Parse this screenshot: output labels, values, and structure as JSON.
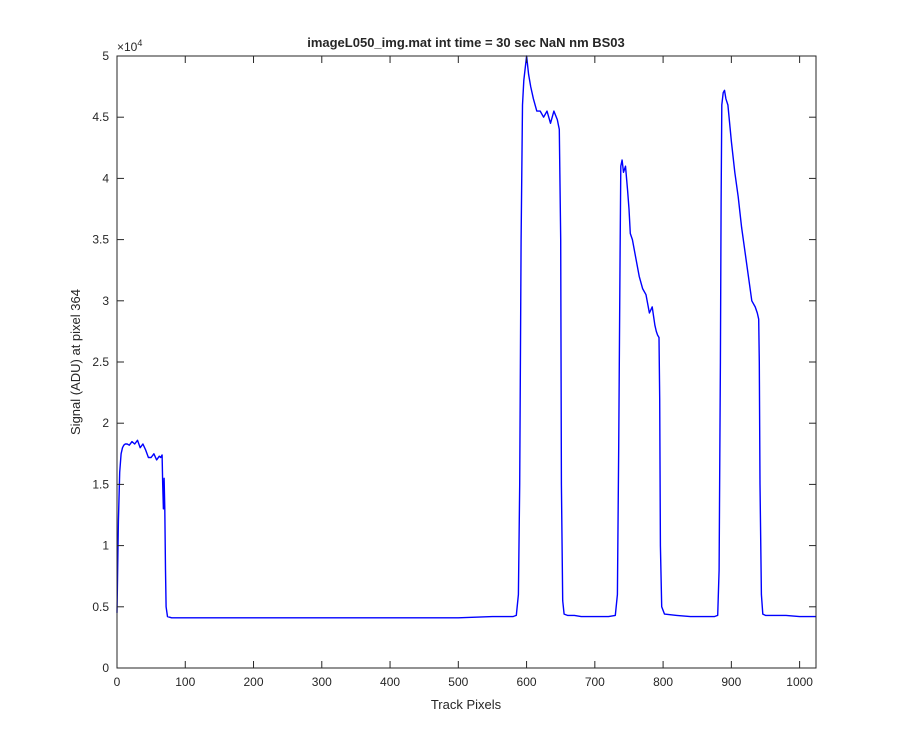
{
  "chart_data": {
    "type": "line",
    "title": "imageL050_img.mat int time = 30 sec  NaN nm BS03",
    "xlabel": "Track Pixels",
    "ylabel": "Signal (ADU) at pixel 364",
    "y_multiplier": "×10",
    "y_multiplier_exp": "4",
    "xlim": [
      0,
      1024
    ],
    "ylim": [
      0,
      5
    ],
    "x_ticks": [
      0,
      100,
      200,
      300,
      400,
      500,
      600,
      700,
      800,
      900,
      1000
    ],
    "x_tick_labels": [
      "0",
      "100",
      "200",
      "300",
      "400",
      "500",
      "600",
      "700",
      "800",
      "900",
      "1000"
    ],
    "y_ticks": [
      0,
      0.5,
      1,
      1.5,
      2,
      2.5,
      3,
      3.5,
      4,
      4.5,
      5
    ],
    "y_tick_labels": [
      "0",
      "0.5",
      "1",
      "1.5",
      "2",
      "2.5",
      "3",
      "3.5",
      "4",
      "4.5",
      "5"
    ],
    "grid": false,
    "line_color": "#0000ff",
    "series": [
      {
        "x": [
          0,
          2,
          4,
          6,
          8,
          10,
          12,
          15,
          18,
          22,
          26,
          30,
          34,
          38,
          42,
          46,
          50,
          54,
          58,
          62,
          64,
          66,
          67,
          68,
          69,
          70,
          71,
          72,
          74,
          80,
          100,
          150,
          200,
          250,
          300,
          350,
          400,
          450,
          500,
          550,
          580,
          585,
          588,
          590,
          592,
          594,
          596,
          598,
          600,
          603,
          606,
          610,
          615,
          620,
          625,
          630,
          635,
          640,
          645,
          648,
          650,
          651,
          653,
          655,
          660,
          670,
          680,
          700,
          720,
          730,
          733,
          735,
          737,
          738,
          740,
          742,
          745,
          748,
          750,
          752,
          755,
          760,
          765,
          770,
          775,
          780,
          784,
          788,
          790,
          792,
          794,
          795,
          796,
          798,
          802,
          820,
          840,
          860,
          875,
          880,
          882,
          884,
          885,
          886,
          888,
          890,
          892,
          895,
          900,
          905,
          910,
          915,
          920,
          925,
          930,
          935,
          938,
          940,
          941,
          942,
          944,
          946,
          950,
          960,
          980,
          1000,
          1024
        ],
        "y": [
          0.45,
          1.2,
          1.6,
          1.75,
          1.8,
          1.82,
          1.83,
          1.83,
          1.82,
          1.85,
          1.83,
          1.86,
          1.8,
          1.83,
          1.78,
          1.72,
          1.72,
          1.75,
          1.7,
          1.73,
          1.72,
          1.74,
          1.5,
          1.3,
          1.55,
          1.3,
          0.8,
          0.5,
          0.42,
          0.41,
          0.41,
          0.41,
          0.41,
          0.41,
          0.41,
          0.41,
          0.41,
          0.41,
          0.41,
          0.42,
          0.42,
          0.43,
          0.6,
          1.5,
          3.5,
          4.6,
          4.8,
          4.9,
          5.0,
          4.85,
          4.75,
          4.65,
          4.55,
          4.55,
          4.5,
          4.55,
          4.45,
          4.55,
          4.48,
          4.4,
          3.5,
          1.5,
          0.55,
          0.44,
          0.43,
          0.43,
          0.42,
          0.42,
          0.42,
          0.43,
          0.6,
          1.8,
          3.4,
          4.1,
          4.15,
          4.05,
          4.1,
          3.9,
          3.75,
          3.55,
          3.5,
          3.35,
          3.2,
          3.1,
          3.05,
          2.9,
          2.95,
          2.8,
          2.75,
          2.72,
          2.7,
          2.2,
          1.0,
          0.5,
          0.44,
          0.43,
          0.42,
          0.42,
          0.42,
          0.43,
          0.8,
          2.5,
          3.8,
          4.6,
          4.7,
          4.72,
          4.65,
          4.6,
          4.3,
          4.05,
          3.85,
          3.6,
          3.4,
          3.2,
          3.0,
          2.95,
          2.9,
          2.85,
          2.5,
          1.5,
          0.6,
          0.44,
          0.43,
          0.43,
          0.43,
          0.42,
          0.42
        ]
      }
    ]
  }
}
